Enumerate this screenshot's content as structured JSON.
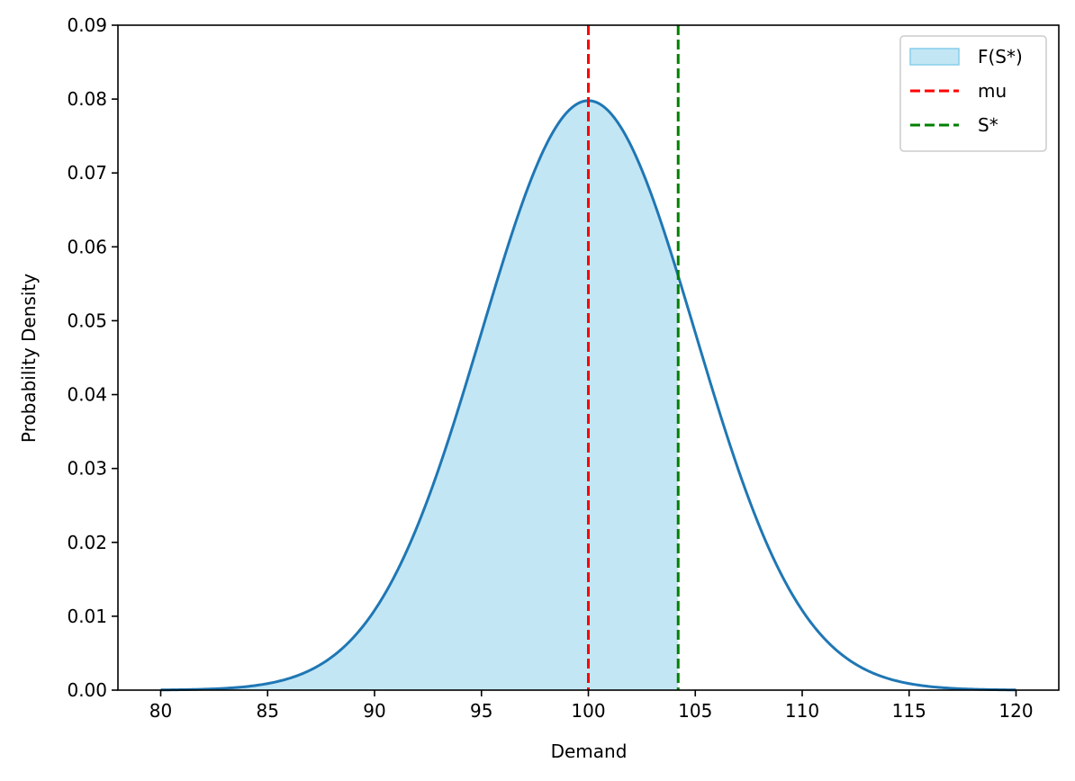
{
  "chart_data": {
    "type": "area",
    "xlabel": "Demand",
    "ylabel": "Probability Density",
    "xlim": [
      78,
      122
    ],
    "ylim": [
      0,
      0.09
    ],
    "x_ticks": [
      "80",
      "85",
      "90",
      "95",
      "100",
      "105",
      "110",
      "115",
      "120"
    ],
    "y_ticks": [
      "0.00",
      "0.01",
      "0.02",
      "0.03",
      "0.04",
      "0.05",
      "0.06",
      "0.07",
      "0.08",
      "0.09"
    ],
    "grid": false,
    "legend_position": "top-right",
    "distribution": {
      "family": "normal",
      "mean": 100,
      "std": 5,
      "x_range": [
        80,
        120
      ]
    },
    "series": [
      {
        "kind": "line",
        "color": "#1f77b4",
        "x": [
          80,
          82,
          84,
          86,
          88,
          90,
          92,
          94,
          96,
          98,
          100,
          102,
          104,
          106,
          108,
          110,
          112,
          114,
          116,
          118,
          120
        ],
        "y": [
          0.0001,
          0.0003,
          0.001,
          0.0029,
          0.0071,
          0.0108,
          0.0224,
          0.0389,
          0.0579,
          0.0737,
          0.0798,
          0.0737,
          0.0579,
          0.0389,
          0.0224,
          0.0108,
          0.0045,
          0.0016,
          0.0005,
          0.0001,
          0.0
        ]
      },
      {
        "kind": "fill",
        "name": "F(S*)",
        "color": "#87ceeb",
        "x_from": 80,
        "x_to": 104.2
      },
      {
        "kind": "vline",
        "name": "mu",
        "x": 100,
        "color": "#ff0000",
        "style": "dashed"
      },
      {
        "kind": "vline",
        "name": "S*",
        "x": 104.2,
        "color": "#008000",
        "style": "dashed"
      }
    ],
    "legend": [
      {
        "label": "F(S*)",
        "kind": "patch",
        "color": "#87ceeb"
      },
      {
        "label": "mu",
        "kind": "dashed-line",
        "color": "#ff0000"
      },
      {
        "label": "S*",
        "kind": "dashed-line",
        "color": "#008000"
      }
    ]
  }
}
